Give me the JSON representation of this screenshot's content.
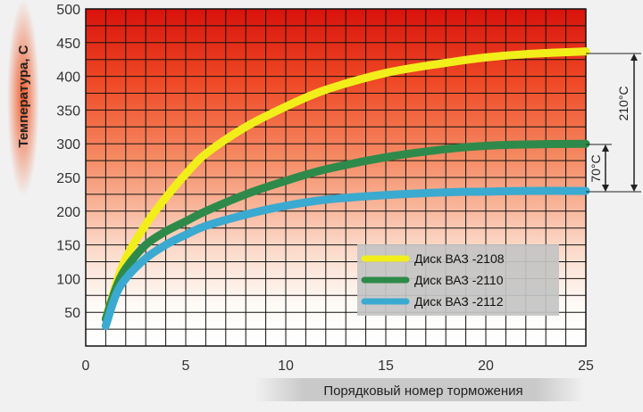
{
  "chart_data": {
    "type": "line",
    "xlabel": "Порядковый номер торможения",
    "ylabel": "Температура, С",
    "xlim": [
      0,
      25
    ],
    "ylim": [
      0,
      500
    ],
    "xticks": [
      0,
      5,
      10,
      15,
      20,
      25
    ],
    "yticks": [
      50,
      100,
      150,
      200,
      250,
      300,
      350,
      400,
      450,
      500
    ],
    "grid": true,
    "legend_position": "bottom-right",
    "series": [
      {
        "name": "Диск ВАЗ -2108",
        "color": "#f2ee1a",
        "x": [
          1,
          1.5,
          2,
          3,
          4,
          5,
          6,
          8,
          10,
          12,
          15,
          18,
          20,
          22,
          25
        ],
        "y": [
          40,
          90,
          130,
          180,
          220,
          255,
          285,
          325,
          355,
          380,
          405,
          420,
          428,
          433,
          437
        ]
      },
      {
        "name": "Диск ВАЗ -2110",
        "color": "#2e8a4a",
        "x": [
          1,
          1.5,
          2,
          3,
          4,
          5,
          6,
          8,
          10,
          12,
          15,
          18,
          20,
          22,
          25
        ],
        "y": [
          40,
          85,
          115,
          150,
          170,
          185,
          200,
          225,
          245,
          262,
          280,
          292,
          297,
          299,
          300
        ]
      },
      {
        "name": "Диск ВАЗ -2112",
        "color": "#3aaad0",
        "x": [
          1,
          1.5,
          2,
          3,
          4,
          5,
          6,
          8,
          10,
          12,
          15,
          18,
          20,
          22,
          25
        ],
        "y": [
          30,
          75,
          100,
          130,
          150,
          165,
          178,
          195,
          208,
          217,
          224,
          228,
          229,
          230,
          230
        ]
      }
    ],
    "annotations": [
      {
        "label": "210°C",
        "from": 227,
        "to": 437
      },
      {
        "label": "70°C",
        "from": 230,
        "to": 300
      }
    ]
  }
}
